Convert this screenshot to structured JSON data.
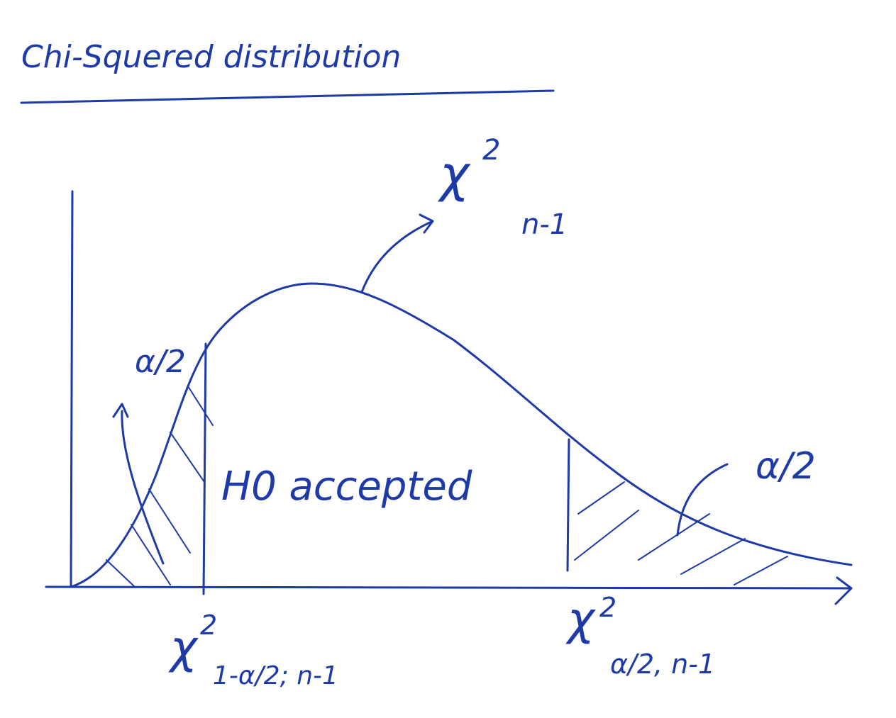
{
  "title": "Chi-Squered distribution",
  "curve_label": {
    "symbol": "χ",
    "power": "2",
    "subscript": "n-1"
  },
  "left_tail": {
    "label": "α/2",
    "symbol": "χ",
    "power": "2",
    "subscript": "1-α/2; n-1"
  },
  "right_tail": {
    "label": "α/2",
    "symbol": "χ",
    "power": "2",
    "subscript": "α/2, n-1"
  },
  "region_label": "H0 accepted"
}
